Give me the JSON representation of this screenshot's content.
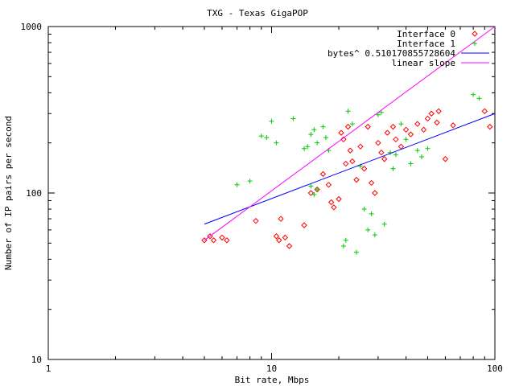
{
  "chart_data": {
    "type": "scatter",
    "title": "TXG - Texas GigaPOP",
    "xlabel": "Bit rate, Mbps",
    "ylabel": "Number of IP pairs per second",
    "xscale": "log",
    "yscale": "log",
    "xlim": [
      1,
      100
    ],
    "ylim": [
      10,
      1000
    ],
    "xticks": [
      "1",
      "10",
      "100"
    ],
    "yticks": [
      "10",
      "100",
      "1000"
    ],
    "grid": false,
    "legend_position": "top-right",
    "series": [
      {
        "name": "Interface 0",
        "marker": "diamond",
        "color": "#ff0000",
        "points": [
          [
            5.0,
            52
          ],
          [
            5.3,
            55
          ],
          [
            5.5,
            52
          ],
          [
            6.0,
            54
          ],
          [
            6.3,
            52
          ],
          [
            8.5,
            68
          ],
          [
            10.5,
            55
          ],
          [
            10.8,
            52
          ],
          [
            11.0,
            70
          ],
          [
            11.5,
            54
          ],
          [
            12.0,
            48
          ],
          [
            14.0,
            64
          ],
          [
            15.0,
            100
          ],
          [
            16.0,
            105
          ],
          [
            17.0,
            130
          ],
          [
            18.0,
            112
          ],
          [
            18.5,
            88
          ],
          [
            19.0,
            82
          ],
          [
            20.0,
            92
          ],
          [
            20.5,
            230
          ],
          [
            21.0,
            210
          ],
          [
            21.5,
            150
          ],
          [
            22.0,
            250
          ],
          [
            22.5,
            180
          ],
          [
            23.0,
            155
          ],
          [
            24.0,
            120
          ],
          [
            25.0,
            190
          ],
          [
            26.0,
            140
          ],
          [
            27.0,
            250
          ],
          [
            28.0,
            115
          ],
          [
            29.0,
            100
          ],
          [
            30.0,
            200
          ],
          [
            31.0,
            175
          ],
          [
            32.0,
            160
          ],
          [
            33.0,
            230
          ],
          [
            35.0,
            250
          ],
          [
            36.0,
            210
          ],
          [
            38.0,
            190
          ],
          [
            40.0,
            240
          ],
          [
            42.0,
            225
          ],
          [
            45.0,
            260
          ],
          [
            48.0,
            240
          ],
          [
            50.0,
            280
          ],
          [
            52.0,
            300
          ],
          [
            55.0,
            265
          ],
          [
            56.0,
            310
          ],
          [
            60.0,
            160
          ],
          [
            65.0,
            255
          ],
          [
            90.0,
            310
          ],
          [
            95.0,
            250
          ]
        ]
      },
      {
        "name": "Interface 1",
        "marker": "plus",
        "color": "#00cc00",
        "points": [
          [
            7.0,
            112
          ],
          [
            8.0,
            118
          ],
          [
            9.0,
            220
          ],
          [
            9.5,
            215
          ],
          [
            10.0,
            270
          ],
          [
            10.5,
            200
          ],
          [
            12.5,
            280
          ],
          [
            14.0,
            185
          ],
          [
            14.5,
            190
          ],
          [
            15.0,
            225
          ],
          [
            15.5,
            240
          ],
          [
            16.0,
            200
          ],
          [
            17.0,
            250
          ],
          [
            17.5,
            215
          ],
          [
            18.0,
            180
          ],
          [
            15.0,
            110
          ],
          [
            15.5,
            98
          ],
          [
            16.0,
            105
          ],
          [
            21.0,
            48
          ],
          [
            21.5,
            52
          ],
          [
            22.0,
            310
          ],
          [
            23.0,
            260
          ],
          [
            24.0,
            44
          ],
          [
            25.0,
            145
          ],
          [
            26.0,
            80
          ],
          [
            27.0,
            60
          ],
          [
            28.0,
            75
          ],
          [
            29.0,
            56
          ],
          [
            30.0,
            295
          ],
          [
            31.0,
            305
          ],
          [
            32.0,
            65
          ],
          [
            34.0,
            175
          ],
          [
            35.0,
            140
          ],
          [
            36.0,
            170
          ],
          [
            38.0,
            260
          ],
          [
            40.0,
            210
          ],
          [
            42.0,
            150
          ],
          [
            45.0,
            180
          ],
          [
            47.0,
            165
          ],
          [
            50.0,
            185
          ],
          [
            85.0,
            370
          ],
          [
            80.0,
            390
          ]
        ]
      }
    ],
    "fits": [
      {
        "name": "bytes^ 0.510170855728604",
        "color": "#0000ff",
        "exponent": 0.510170855728604,
        "x": [
          5,
          100
        ],
        "y": [
          65,
          300
        ]
      },
      {
        "name": "linear slope",
        "color": "#ff00ff",
        "exponent": 1,
        "x": [
          5,
          100
        ],
        "y": [
          52,
          1000
        ]
      }
    ]
  }
}
